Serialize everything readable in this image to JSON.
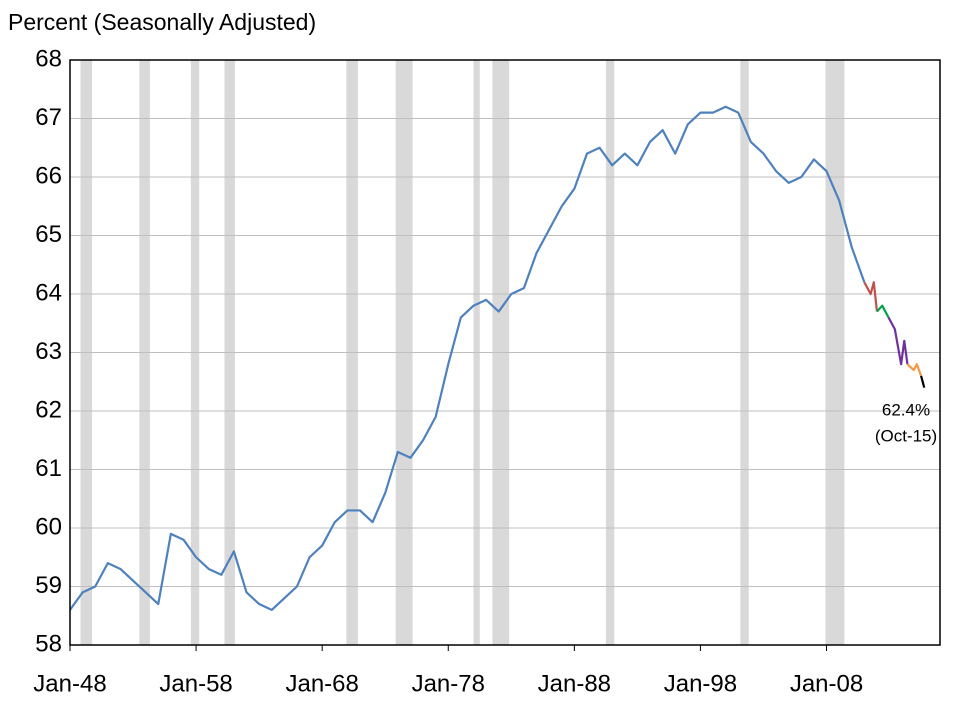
{
  "chart_data": {
    "type": "line",
    "y_label": "Percent (Seasonally Adjusted)",
    "annotation": [
      "62.4%",
      "(Oct-15)"
    ],
    "xlim": [
      "1948-01",
      "2017-01"
    ],
    "xticks": [
      {
        "value": "1948-01",
        "label": "Jan-48"
      },
      {
        "value": "1958-01",
        "label": "Jan-58"
      },
      {
        "value": "1968-01",
        "label": "Jan-68"
      },
      {
        "value": "1978-01",
        "label": "Jan-78"
      },
      {
        "value": "1988-01",
        "label": "Jan-88"
      },
      {
        "value": "1998-01",
        "label": "Jan-98"
      },
      {
        "value": "2008-01",
        "label": "Jan-08"
      }
    ],
    "ylim": [
      58,
      68
    ],
    "yticks": [
      58,
      59,
      60,
      61,
      62,
      63,
      64,
      65,
      66,
      67,
      68
    ],
    "grid": true,
    "recession_color": "#d9d9d9",
    "recessions": [
      [
        "1948-11",
        "1949-10"
      ],
      [
        "1953-07",
        "1954-05"
      ],
      [
        "1957-08",
        "1958-04"
      ],
      [
        "1960-04",
        "1961-02"
      ],
      [
        "1969-12",
        "1970-11"
      ],
      [
        "1973-11",
        "1975-03"
      ],
      [
        "1980-01",
        "1980-07"
      ],
      [
        "1981-07",
        "1982-11"
      ],
      [
        "1990-07",
        "1991-03"
      ],
      [
        "2001-03",
        "2001-11"
      ],
      [
        "2007-12",
        "2009-06"
      ]
    ],
    "series": [
      {
        "color": "#4f81bd",
        "x": [
          "1948-01",
          "1949-01",
          "1950-01",
          "1951-01",
          "1952-01",
          "1953-01",
          "1954-01",
          "1955-01",
          "1956-01",
          "1957-01",
          "1958-01",
          "1959-01",
          "1960-01",
          "1961-01",
          "1962-01",
          "1963-01",
          "1964-01",
          "1965-01",
          "1966-01",
          "1967-01",
          "1968-01",
          "1969-01",
          "1970-01",
          "1971-01",
          "1972-01",
          "1973-01",
          "1974-01",
          "1975-01",
          "1976-01",
          "1977-01",
          "1978-01",
          "1979-01",
          "1980-01",
          "1981-01",
          "1982-01",
          "1983-01",
          "1984-01",
          "1985-01",
          "1986-01",
          "1987-01",
          "1988-01",
          "1989-01",
          "1990-01",
          "1991-01",
          "1992-01",
          "1993-01",
          "1994-01",
          "1995-01",
          "1996-01",
          "1997-01",
          "1998-01",
          "1999-01",
          "2000-01",
          "2001-01",
          "2002-01",
          "2003-01",
          "2004-01",
          "2005-01",
          "2006-01",
          "2007-01",
          "2008-01",
          "2009-01",
          "2010-01",
          "2011-01"
        ],
        "values": [
          58.6,
          58.9,
          59.0,
          59.4,
          59.3,
          59.1,
          58.9,
          58.7,
          59.9,
          59.8,
          59.5,
          59.3,
          59.2,
          59.6,
          58.9,
          58.7,
          58.6,
          58.8,
          59.0,
          59.5,
          59.7,
          60.1,
          60.3,
          60.3,
          60.1,
          60.6,
          61.3,
          61.2,
          61.5,
          61.9,
          62.8,
          63.6,
          63.8,
          63.9,
          63.7,
          64.0,
          64.1,
          64.7,
          65.1,
          65.5,
          65.8,
          66.4,
          66.5,
          66.2,
          66.4,
          66.2,
          66.6,
          66.8,
          66.4,
          66.9,
          67.1,
          67.1,
          67.2,
          67.1,
          66.6,
          66.4,
          66.1,
          65.9,
          66.0,
          66.3,
          66.1,
          65.6,
          64.8,
          64.2
        ]
      },
      {
        "color": "#c0504d",
        "x": [
          "2011-01",
          "2011-07",
          "2011-10",
          "2012-01"
        ],
        "values": [
          64.2,
          64.0,
          64.2,
          63.7
        ]
      },
      {
        "color": "#00a050",
        "x": [
          "2012-01",
          "2012-06",
          "2012-12"
        ],
        "values": [
          63.7,
          63.8,
          63.6
        ]
      },
      {
        "color": "#7030a0",
        "x": [
          "2012-12",
          "2013-06",
          "2013-12",
          "2014-03",
          "2014-06"
        ],
        "values": [
          63.6,
          63.4,
          62.8,
          63.2,
          62.8
        ]
      },
      {
        "color": "#f79646",
        "x": [
          "2014-06",
          "2014-12",
          "2015-03",
          "2015-07"
        ],
        "values": [
          62.8,
          62.7,
          62.8,
          62.6
        ]
      },
      {
        "color": "#000000",
        "x": [
          "2015-07",
          "2015-10"
        ],
        "values": [
          62.6,
          62.4
        ]
      }
    ]
  }
}
